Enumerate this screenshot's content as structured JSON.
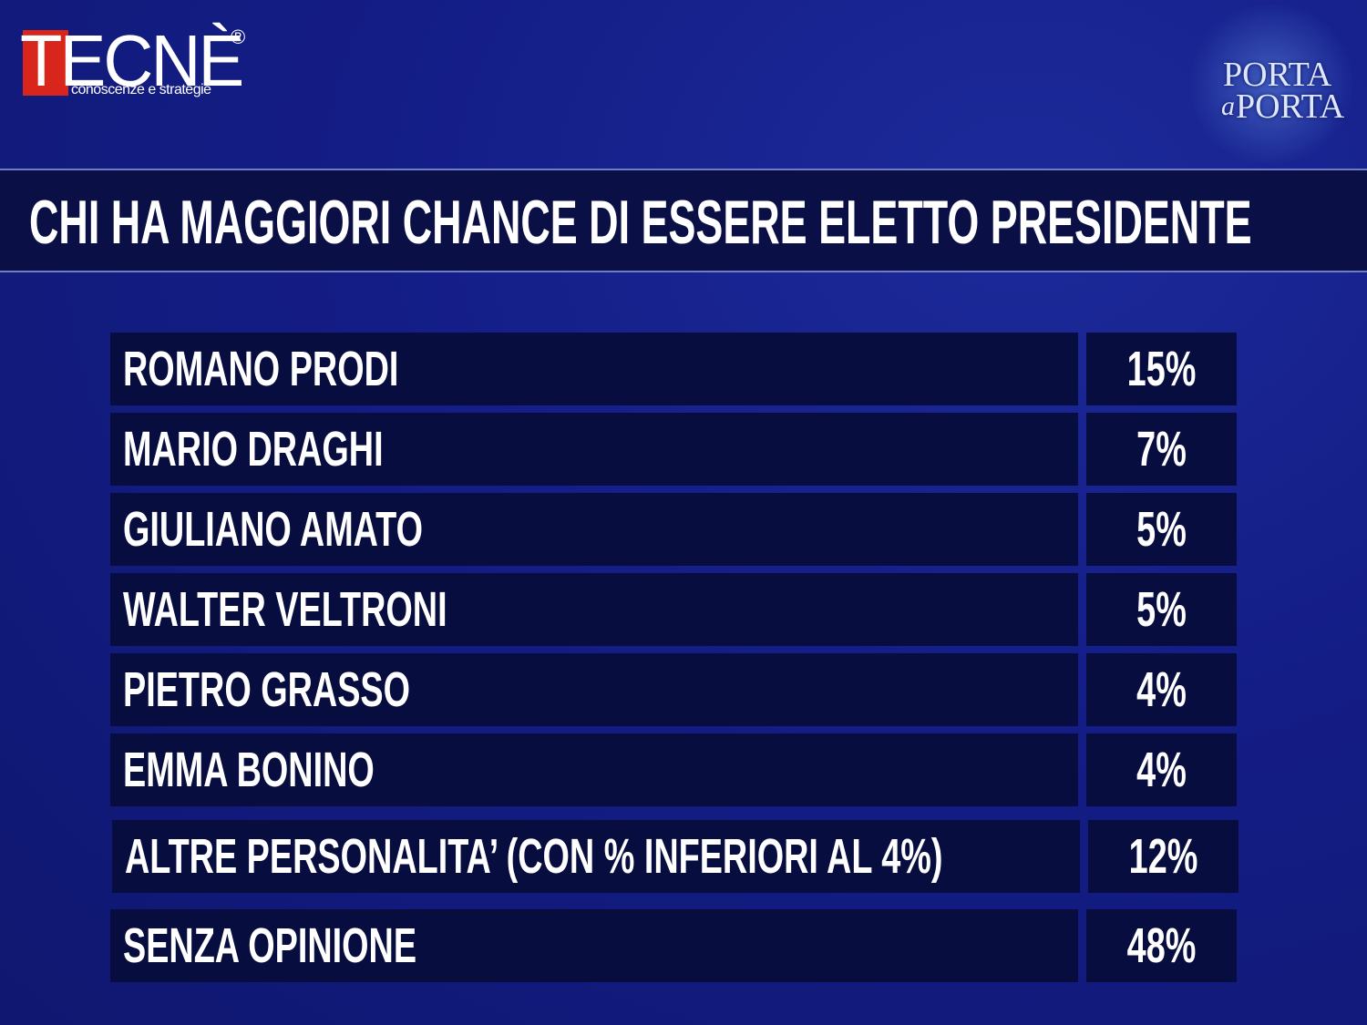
{
  "header": {
    "brand": "TECNÈ",
    "registered": "®",
    "tagline": "conoscenze e strategie",
    "show_logo": [
      "PORTA",
      "a",
      "PORTA"
    ]
  },
  "title": "CHI HA MAGGIORI CHANCE DI ESSERE ELETTO PRESIDENTE",
  "table": {
    "rows": [
      [
        "ROMANO PRODI",
        "15%"
      ],
      [
        "MARIO DRAGHI",
        "7%"
      ],
      [
        "GIULIANO AMATO",
        "5%"
      ],
      [
        "WALTER VELTRONI",
        "5%"
      ],
      [
        "PIETRO GRASSO",
        "4%"
      ],
      [
        "EMMA BONINO",
        "4%"
      ],
      [
        "ALTRE PERSONALITA’ (CON % INFERIORI AL 4%)",
        "12%"
      ],
      [
        "SENZA OPINIONE",
        "48%"
      ]
    ]
  }
}
